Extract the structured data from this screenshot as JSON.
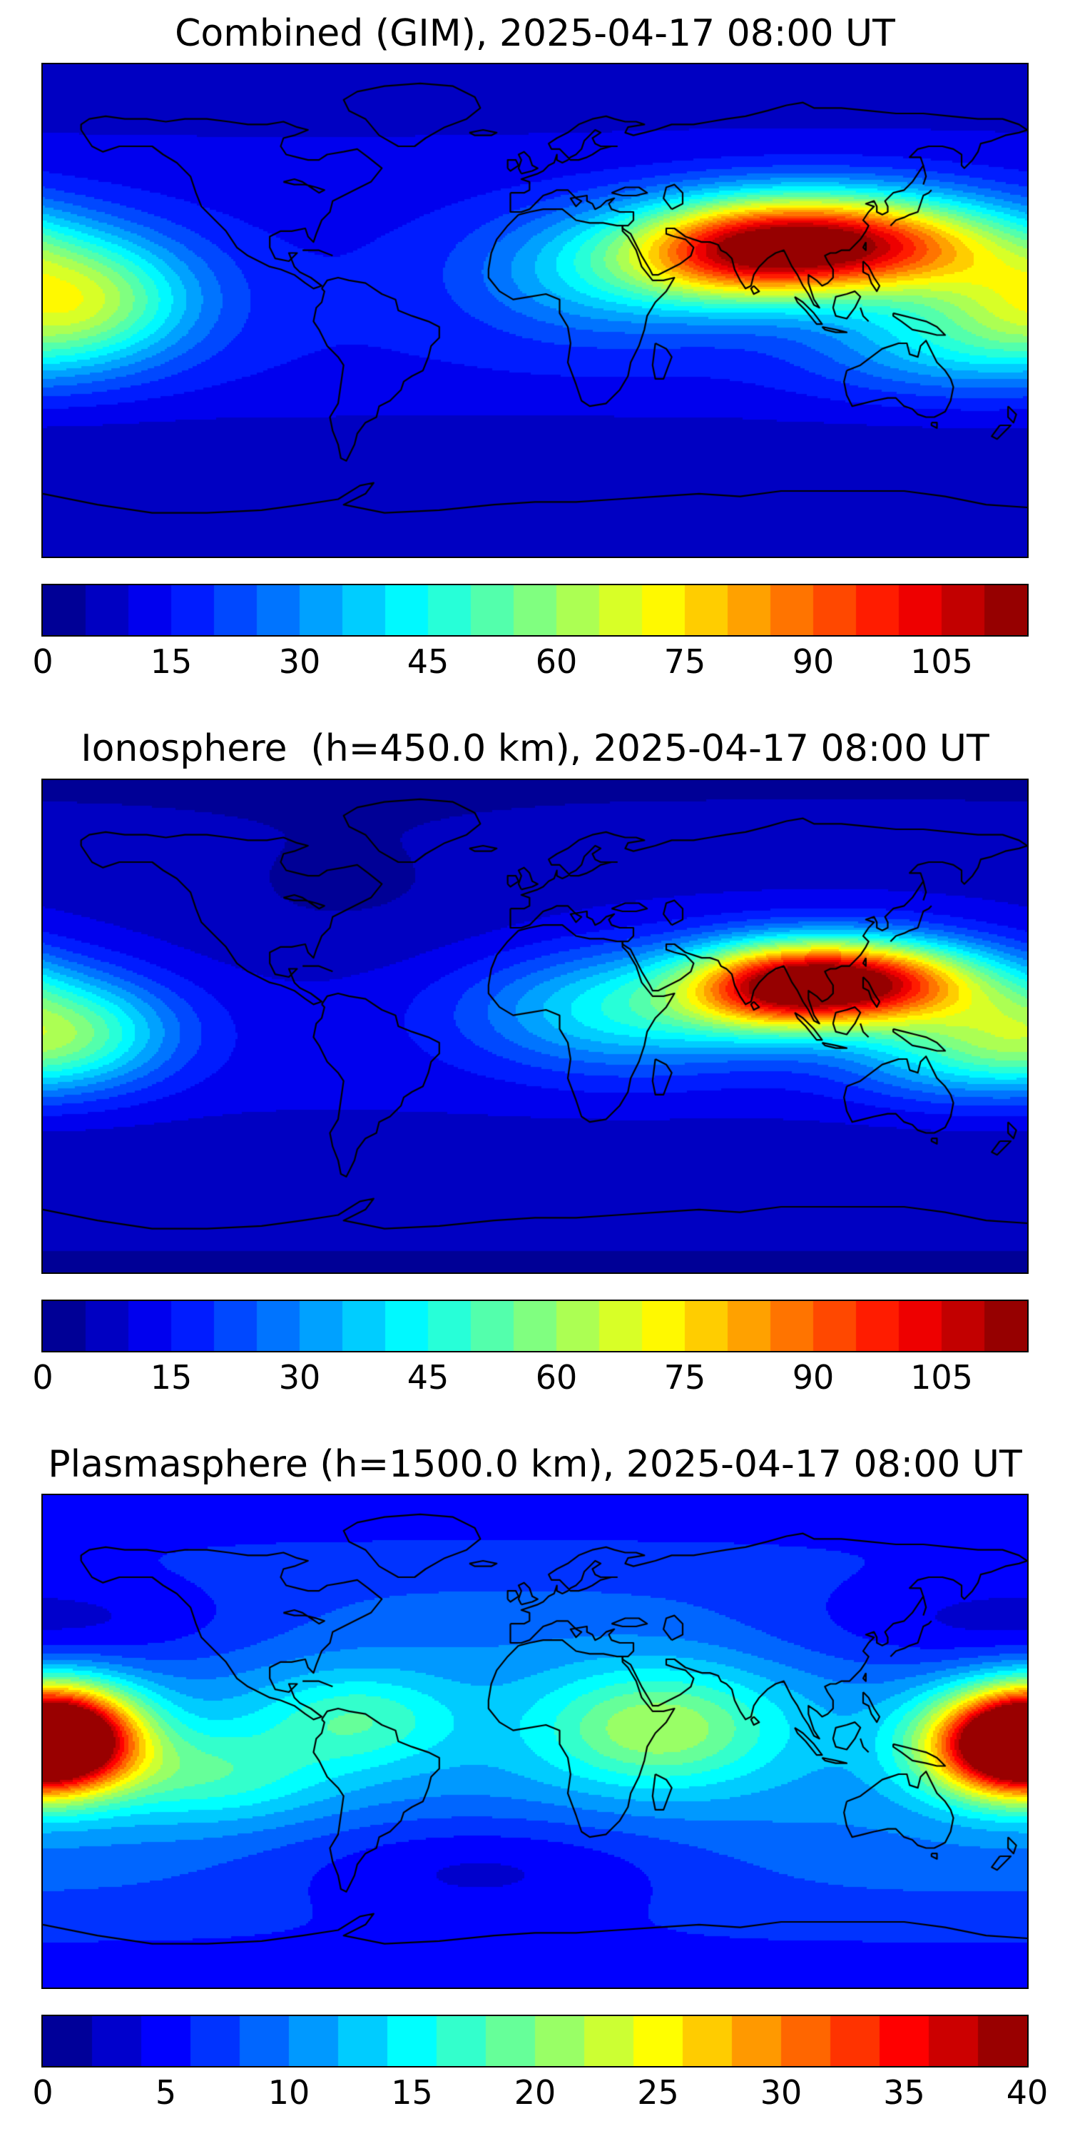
{
  "figure": {
    "background": "#ffffff",
    "coastline_color": "#000000",
    "map_border_color": "#000000"
  },
  "chart_data": [
    {
      "type": "heatmap",
      "subtype": "filled-contour-world-map",
      "title": "Combined (GIM), 2025-04-17 08:00 UT",
      "projection": "equirectangular",
      "lon_range": [
        -180,
        180
      ],
      "lat_range": [
        -90,
        90
      ],
      "colormap": "jet",
      "vmin": 0,
      "vmax": 115,
      "level_step": 5,
      "n_levels": 23,
      "colorbar_ticks": [
        0,
        15,
        30,
        45,
        60,
        75,
        90,
        105
      ],
      "peak_value_estimate": 112,
      "peak_location": {
        "lon": 108,
        "lat": 24
      },
      "field_model": {
        "base_polar": 6,
        "base_equator_extra": 9,
        "gaussians": [
          {
            "lon": 108,
            "lat": 24,
            "sigma_lon": 42,
            "sigma_lat": 13,
            "amp": 98
          },
          {
            "lon": 70,
            "lat": 20,
            "sigma_lon": 26,
            "sigma_lat": 13,
            "amp": 28
          },
          {
            "lon": 25,
            "lat": 14,
            "sigma_lon": 34,
            "sigma_lat": 16,
            "amp": 22
          },
          {
            "lon": -168,
            "lat": 4,
            "sigma_lon": 30,
            "sigma_lat": 16,
            "amp": 48
          },
          {
            "lon": 148,
            "lat": -12,
            "sigma_lon": 34,
            "sigma_lat": 13,
            "amp": 20
          },
          {
            "lon": -90,
            "lat": -50,
            "sigma_lon": 90,
            "sigma_lat": 12,
            "amp": -4
          },
          {
            "lon": 90,
            "lat": -50,
            "sigma_lon": 90,
            "sigma_lat": 12,
            "amp": -4
          }
        ]
      }
    },
    {
      "type": "heatmap",
      "subtype": "filled-contour-world-map",
      "title": "Ionosphere  (h=450.0 km), 2025-04-17 08:00 UT",
      "projection": "equirectangular",
      "lon_range": [
        -180,
        180
      ],
      "lat_range": [
        -90,
        90
      ],
      "colormap": "jet",
      "vmin": 0,
      "vmax": 115,
      "level_step": 5,
      "n_levels": 23,
      "colorbar_ticks": [
        0,
        15,
        30,
        45,
        60,
        75,
        90,
        105
      ],
      "peak_value_estimate": 111,
      "peak_location": {
        "lon": 115,
        "lat": 16
      },
      "field_model": {
        "base_polar": 4,
        "base_equator_extra": 8,
        "gaussians": [
          {
            "lon": 115,
            "lat": 16,
            "sigma_lon": 34,
            "sigma_lat": 11,
            "amp": 100
          },
          {
            "lon": 85,
            "lat": 13,
            "sigma_lon": 22,
            "sigma_lat": 11,
            "amp": 30
          },
          {
            "lon": 35,
            "lat": 6,
            "sigma_lon": 40,
            "sigma_lat": 15,
            "amp": 32
          },
          {
            "lon": -172,
            "lat": -2,
            "sigma_lon": 28,
            "sigma_lat": 14,
            "amp": 40
          },
          {
            "lon": 150,
            "lat": -10,
            "sigma_lon": 30,
            "sigma_lat": 12,
            "amp": 22
          },
          {
            "lon": -70,
            "lat": 42,
            "sigma_lon": 55,
            "sigma_lat": 20,
            "amp": -5
          },
          {
            "lon": -90,
            "lat": -50,
            "sigma_lon": 90,
            "sigma_lat": 12,
            "amp": -3
          },
          {
            "lon": 90,
            "lat": -50,
            "sigma_lon": 90,
            "sigma_lat": 12,
            "amp": -3
          }
        ]
      }
    },
    {
      "type": "heatmap",
      "subtype": "filled-contour-world-map",
      "title": "Plasmasphere (h=1500.0 km), 2025-04-17 08:00 UT",
      "projection": "equirectangular",
      "lon_range": [
        -180,
        180
      ],
      "lat_range": [
        -90,
        90
      ],
      "colormap": "jet",
      "vmin": 0,
      "vmax": 40,
      "level_step": 2,
      "n_levels": 20,
      "colorbar_ticks": [
        0,
        5,
        10,
        15,
        20,
        25,
        30,
        35,
        40
      ],
      "peak_value_estimate": 39,
      "peak_location": {
        "lon": -173,
        "lat": 2
      },
      "field_model": {
        "base_polar": 4,
        "base_equator_extra": 7,
        "gaussians": [
          {
            "lon": -173,
            "lat": 2,
            "sigma_lon": 20,
            "sigma_lat": 13,
            "amp": 28
          },
          {
            "lon": 172,
            "lat": -2,
            "sigma_lon": 22,
            "sigma_lat": 13,
            "amp": 26
          },
          {
            "lon": 45,
            "lat": 5,
            "sigma_lon": 30,
            "sigma_lat": 15,
            "amp": 11
          },
          {
            "lon": -120,
            "lat": -12,
            "sigma_lon": 30,
            "sigma_lat": 12,
            "amp": 7
          },
          {
            "lon": -65,
            "lat": 8,
            "sigma_lon": 25,
            "sigma_lat": 12,
            "amp": 7
          },
          {
            "lon": -20,
            "lat": -45,
            "sigma_lon": 55,
            "sigma_lat": 14,
            "amp": -5
          },
          {
            "lon": 150,
            "lat": 42,
            "sigma_lon": 50,
            "sigma_lat": 14,
            "amp": -4
          },
          {
            "lon": -150,
            "lat": 42,
            "sigma_lon": 45,
            "sigma_lat": 13,
            "amp": -3
          }
        ]
      }
    }
  ]
}
